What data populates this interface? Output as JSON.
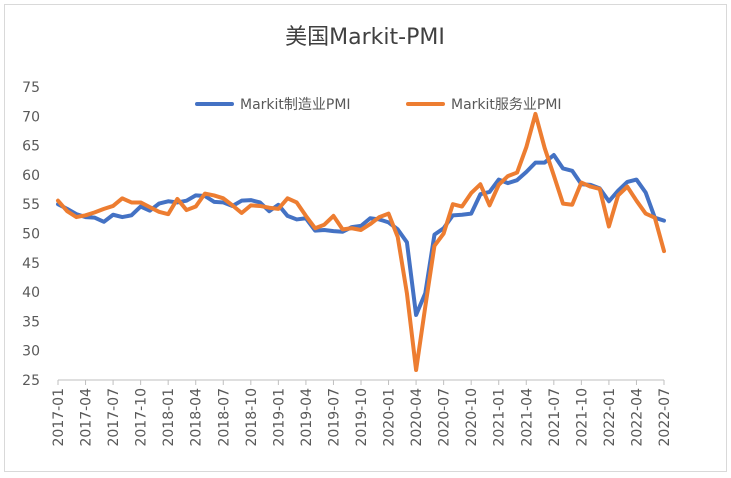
{
  "chart_data": {
    "type": "line",
    "title": "美国Markit-PMI",
    "xlabel": "",
    "ylabel": "",
    "ylim": [
      25,
      75
    ],
    "yticks": [
      "75",
      "70",
      "65",
      "60",
      "55",
      "50",
      "45",
      "40",
      "35",
      "30",
      "25"
    ],
    "grid": false,
    "legend_position": "top",
    "x": [
      "2017-01",
      "2017-02",
      "2017-03",
      "2017-04",
      "2017-05",
      "2017-06",
      "2017-07",
      "2017-08",
      "2017-09",
      "2017-10",
      "2017-11",
      "2017-12",
      "2018-01",
      "2018-02",
      "2018-03",
      "2018-04",
      "2018-05",
      "2018-06",
      "2018-07",
      "2018-08",
      "2018-09",
      "2018-10",
      "2018-11",
      "2018-12",
      "2019-01",
      "2019-02",
      "2019-03",
      "2019-04",
      "2019-05",
      "2019-06",
      "2019-07",
      "2019-08",
      "2019-09",
      "2019-10",
      "2019-11",
      "2019-12",
      "2020-01",
      "2020-02",
      "2020-03",
      "2020-04",
      "2020-05",
      "2020-06",
      "2020-07",
      "2020-08",
      "2020-09",
      "2020-10",
      "2020-11",
      "2020-12",
      "2021-01",
      "2021-02",
      "2021-03",
      "2021-04",
      "2021-05",
      "2021-06",
      "2021-07",
      "2021-08",
      "2021-09",
      "2021-10",
      "2021-11",
      "2021-12",
      "2022-01",
      "2022-02",
      "2022-03",
      "2022-04",
      "2022-05",
      "2022-06",
      "2022-07"
    ],
    "xtick_labels": [
      "2017-01",
      "2017-04",
      "2017-07",
      "2017-10",
      "2018-01",
      "2018-04",
      "2018-07",
      "2018-10",
      "2019-01",
      "2019-04",
      "2019-07",
      "2019-10",
      "2020-01",
      "2020-04",
      "2020-07",
      "2020-10",
      "2021-01",
      "2021-04",
      "2021-07",
      "2021-10",
      "2022-01",
      "2022-04",
      "2022-07"
    ],
    "series": [
      {
        "name": "Markit制造业PMI",
        "color": "#4472c4",
        "values": [
          55.0,
          54.2,
          53.3,
          52.8,
          52.7,
          52.0,
          53.2,
          52.8,
          53.1,
          54.6,
          53.9,
          55.1,
          55.5,
          55.3,
          55.6,
          56.5,
          56.4,
          55.4,
          55.3,
          54.7,
          55.6,
          55.7,
          55.3,
          53.8,
          54.9,
          53.0,
          52.4,
          52.6,
          50.5,
          50.6,
          50.4,
          50.3,
          51.1,
          51.3,
          52.6,
          52.4,
          51.9,
          50.7,
          48.5,
          36.1,
          39.8,
          49.8,
          50.9,
          53.1,
          53.2,
          53.4,
          56.7,
          57.1,
          59.2,
          58.6,
          59.1,
          60.5,
          62.1,
          62.1,
          63.4,
          61.1,
          60.7,
          58.4,
          58.3,
          57.7,
          55.5,
          57.3,
          58.8,
          59.2,
          57.0,
          52.7,
          52.2
        ]
      },
      {
        "name": "Markit服务业PMI",
        "color": "#ed7d31",
        "values": [
          55.6,
          53.8,
          52.8,
          53.1,
          53.6,
          54.2,
          54.7,
          56.0,
          55.3,
          55.3,
          54.5,
          53.7,
          53.3,
          55.9,
          54.0,
          54.6,
          56.8,
          56.5,
          56.0,
          54.8,
          53.5,
          54.8,
          54.7,
          54.4,
          54.2,
          56.0,
          55.3,
          53.0,
          50.9,
          51.5,
          53.0,
          50.7,
          50.9,
          50.6,
          51.6,
          52.8,
          53.4,
          49.4,
          39.8,
          26.7,
          37.5,
          47.9,
          50.0,
          55.0,
          54.6,
          56.9,
          58.4,
          54.8,
          58.3,
          59.8,
          60.4,
          64.7,
          70.4,
          64.6,
          59.9,
          55.1,
          54.9,
          58.7,
          58.0,
          57.6,
          51.2,
          56.5,
          58.0,
          55.6,
          53.4,
          52.7,
          47.0
        ]
      }
    ]
  }
}
